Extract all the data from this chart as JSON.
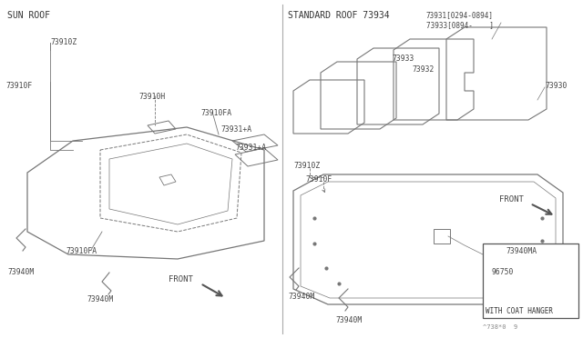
{
  "bg_color": "#ffffff",
  "lc": "#777777",
  "tc": "#555555",
  "sun_roof_label": "SUN ROOF",
  "standard_roof_label": "STANDARD ROOF 73934",
  "part_number_bottom": "^738*0  9",
  "with_coat_hanger": "WITH COAT HANGER"
}
